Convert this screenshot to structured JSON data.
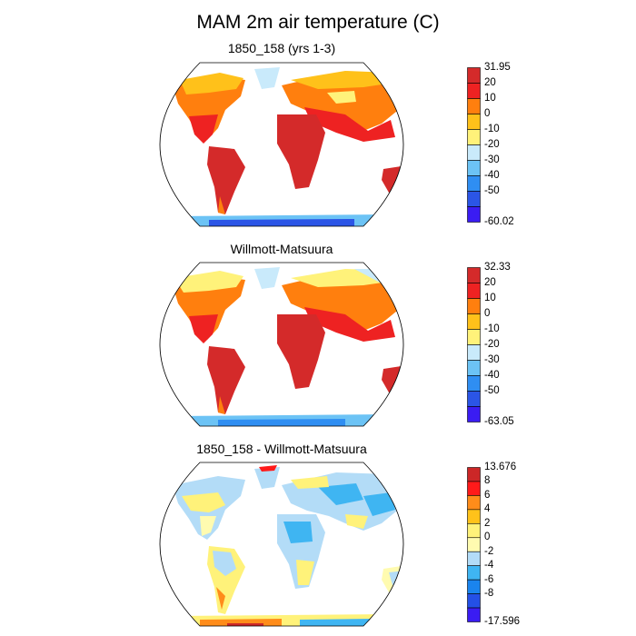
{
  "figure_title": "MAM 2m air temperature (C)",
  "panels": [
    {
      "title": "1850_158 (yrs 1-3)",
      "colorbar": {
        "labels": [
          "31.95",
          "20",
          "10",
          "0",
          "-10",
          "-20",
          "-30",
          "-40",
          "-50",
          "-60.02"
        ],
        "colors": [
          "#d42a2a",
          "#ee2222",
          "#ff7f0e",
          "#ffc11a",
          "#fff27a",
          "#c9eafb",
          "#6cc3f5",
          "#2f8ef2",
          "#2b55e6",
          "#3a1cf2"
        ]
      }
    },
    {
      "title": "Willmott-Matsuura",
      "colorbar": {
        "labels": [
          "32.33",
          "20",
          "10",
          "0",
          "-10",
          "-20",
          "-30",
          "-40",
          "-50",
          "-63.05"
        ],
        "colors": [
          "#d42a2a",
          "#ee2222",
          "#ff7f0e",
          "#ffc11a",
          "#fff27a",
          "#c9eafb",
          "#6cc3f5",
          "#2f8ef2",
          "#2b55e6",
          "#3a1cf2"
        ]
      }
    },
    {
      "title": "1850_158 - Willmott-Matsuura",
      "colorbar": {
        "labels": [
          "13.676",
          "8",
          "6",
          "4",
          "2",
          "0",
          "-2",
          "-4",
          "-6",
          "-8",
          "-17.596"
        ],
        "colors": [
          "#cc2727",
          "#ff1a1a",
          "#ff8c1a",
          "#ffc21a",
          "#fff27a",
          "#fffbb0",
          "#b3dcf7",
          "#3fb5f2",
          "#1a84ee",
          "#2450e6",
          "#3a1cf2"
        ]
      }
    }
  ]
}
